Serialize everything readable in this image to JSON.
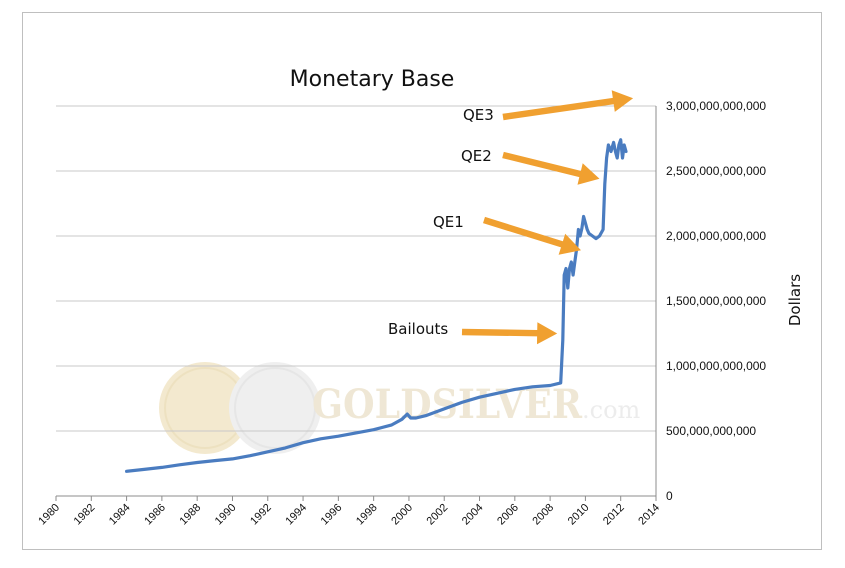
{
  "chart_data": {
    "type": "line",
    "title": "Monetary Base",
    "ylabel": "Dollars",
    "xlabel": "",
    "xlim": [
      1980,
      2014
    ],
    "ylim": [
      0,
      3000000000000
    ],
    "grid": true,
    "x_ticks": [
      "1980",
      "1982",
      "1984",
      "1986",
      "1988",
      "1990",
      "1992",
      "1994",
      "1996",
      "1998",
      "2000",
      "2002",
      "2004",
      "2006",
      "2008",
      "2010",
      "2012",
      "2014"
    ],
    "y_ticks": [
      {
        "value": 0,
        "label": "0"
      },
      {
        "value": 500000000000,
        "label": "500,000,000,000"
      },
      {
        "value": 1000000000000,
        "label": "1,000,000,000,000"
      },
      {
        "value": 1500000000000,
        "label": "1,500,000,000,000"
      },
      {
        "value": 2000000000000,
        "label": "2,000,000,000,000"
      },
      {
        "value": 2500000000000,
        "label": "2,500,000,000,000"
      },
      {
        "value": 3000000000000,
        "label": "3,000,000,000,000"
      }
    ],
    "series": [
      {
        "name": "Monetary Base",
        "color": "#4a7cc0",
        "x": [
          1984.0,
          1985.0,
          1986.0,
          1987.0,
          1988.0,
          1989.0,
          1990.0,
          1991.0,
          1992.0,
          1993.0,
          1994.0,
          1995.0,
          1996.0,
          1997.0,
          1998.0,
          1999.0,
          1999.6,
          1999.9,
          2000.1,
          2000.4,
          2001.0,
          2002.0,
          2003.0,
          2004.0,
          2005.0,
          2006.0,
          2007.0,
          2008.0,
          2008.6,
          2008.72,
          2008.8,
          2008.9,
          2009.0,
          2009.1,
          2009.2,
          2009.3,
          2009.4,
          2009.5,
          2009.6,
          2009.7,
          2009.8,
          2009.9,
          2010.0,
          2010.1,
          2010.2,
          2010.4,
          2010.6,
          2010.8,
          2011.0,
          2011.1,
          2011.2,
          2011.3,
          2011.45,
          2011.6,
          2011.7,
          2011.8,
          2011.9,
          2012.0,
          2012.1,
          2012.2,
          2012.3
        ],
        "values": [
          190000000000,
          205000000000,
          220000000000,
          240000000000,
          258000000000,
          272000000000,
          285000000000,
          310000000000,
          340000000000,
          370000000000,
          410000000000,
          440000000000,
          460000000000,
          485000000000,
          510000000000,
          545000000000,
          590000000000,
          630000000000,
          600000000000,
          600000000000,
          620000000000,
          670000000000,
          720000000000,
          760000000000,
          790000000000,
          820000000000,
          840000000000,
          850000000000,
          870000000000,
          1200000000000,
          1700000000000,
          1750000000000,
          1600000000000,
          1750000000000,
          1800000000000,
          1700000000000,
          1800000000000,
          1900000000000,
          2050000000000,
          2000000000000,
          2060000000000,
          2150000000000,
          2100000000000,
          2050000000000,
          2020000000000,
          2000000000000,
          1980000000000,
          2000000000000,
          2050000000000,
          2400000000000,
          2600000000000,
          2700000000000,
          2650000000000,
          2720000000000,
          2650000000000,
          2600000000000,
          2700000000000,
          2740000000000,
          2600000000000,
          2700000000000,
          2650000000000
        ]
      }
    ],
    "annotations": [
      {
        "label": "Bailouts",
        "arrow_x": 2008.4,
        "arrow_y": 1250000000000
      },
      {
        "label": "QE1",
        "arrow_x": 2009.75,
        "arrow_y": 1890000000000
      },
      {
        "label": "QE2",
        "arrow_x": 2010.8,
        "arrow_y": 2440000000000
      },
      {
        "label": "QE3",
        "arrow_x": 2012.7,
        "arrow_y": 3060000000000
      }
    ]
  },
  "watermark": {
    "text": "GOLDSILVER",
    "suffix": ".com"
  },
  "colors": {
    "line": "#4a7cc0",
    "arrow": "#f0a030",
    "grid": "#c8c8c8"
  }
}
